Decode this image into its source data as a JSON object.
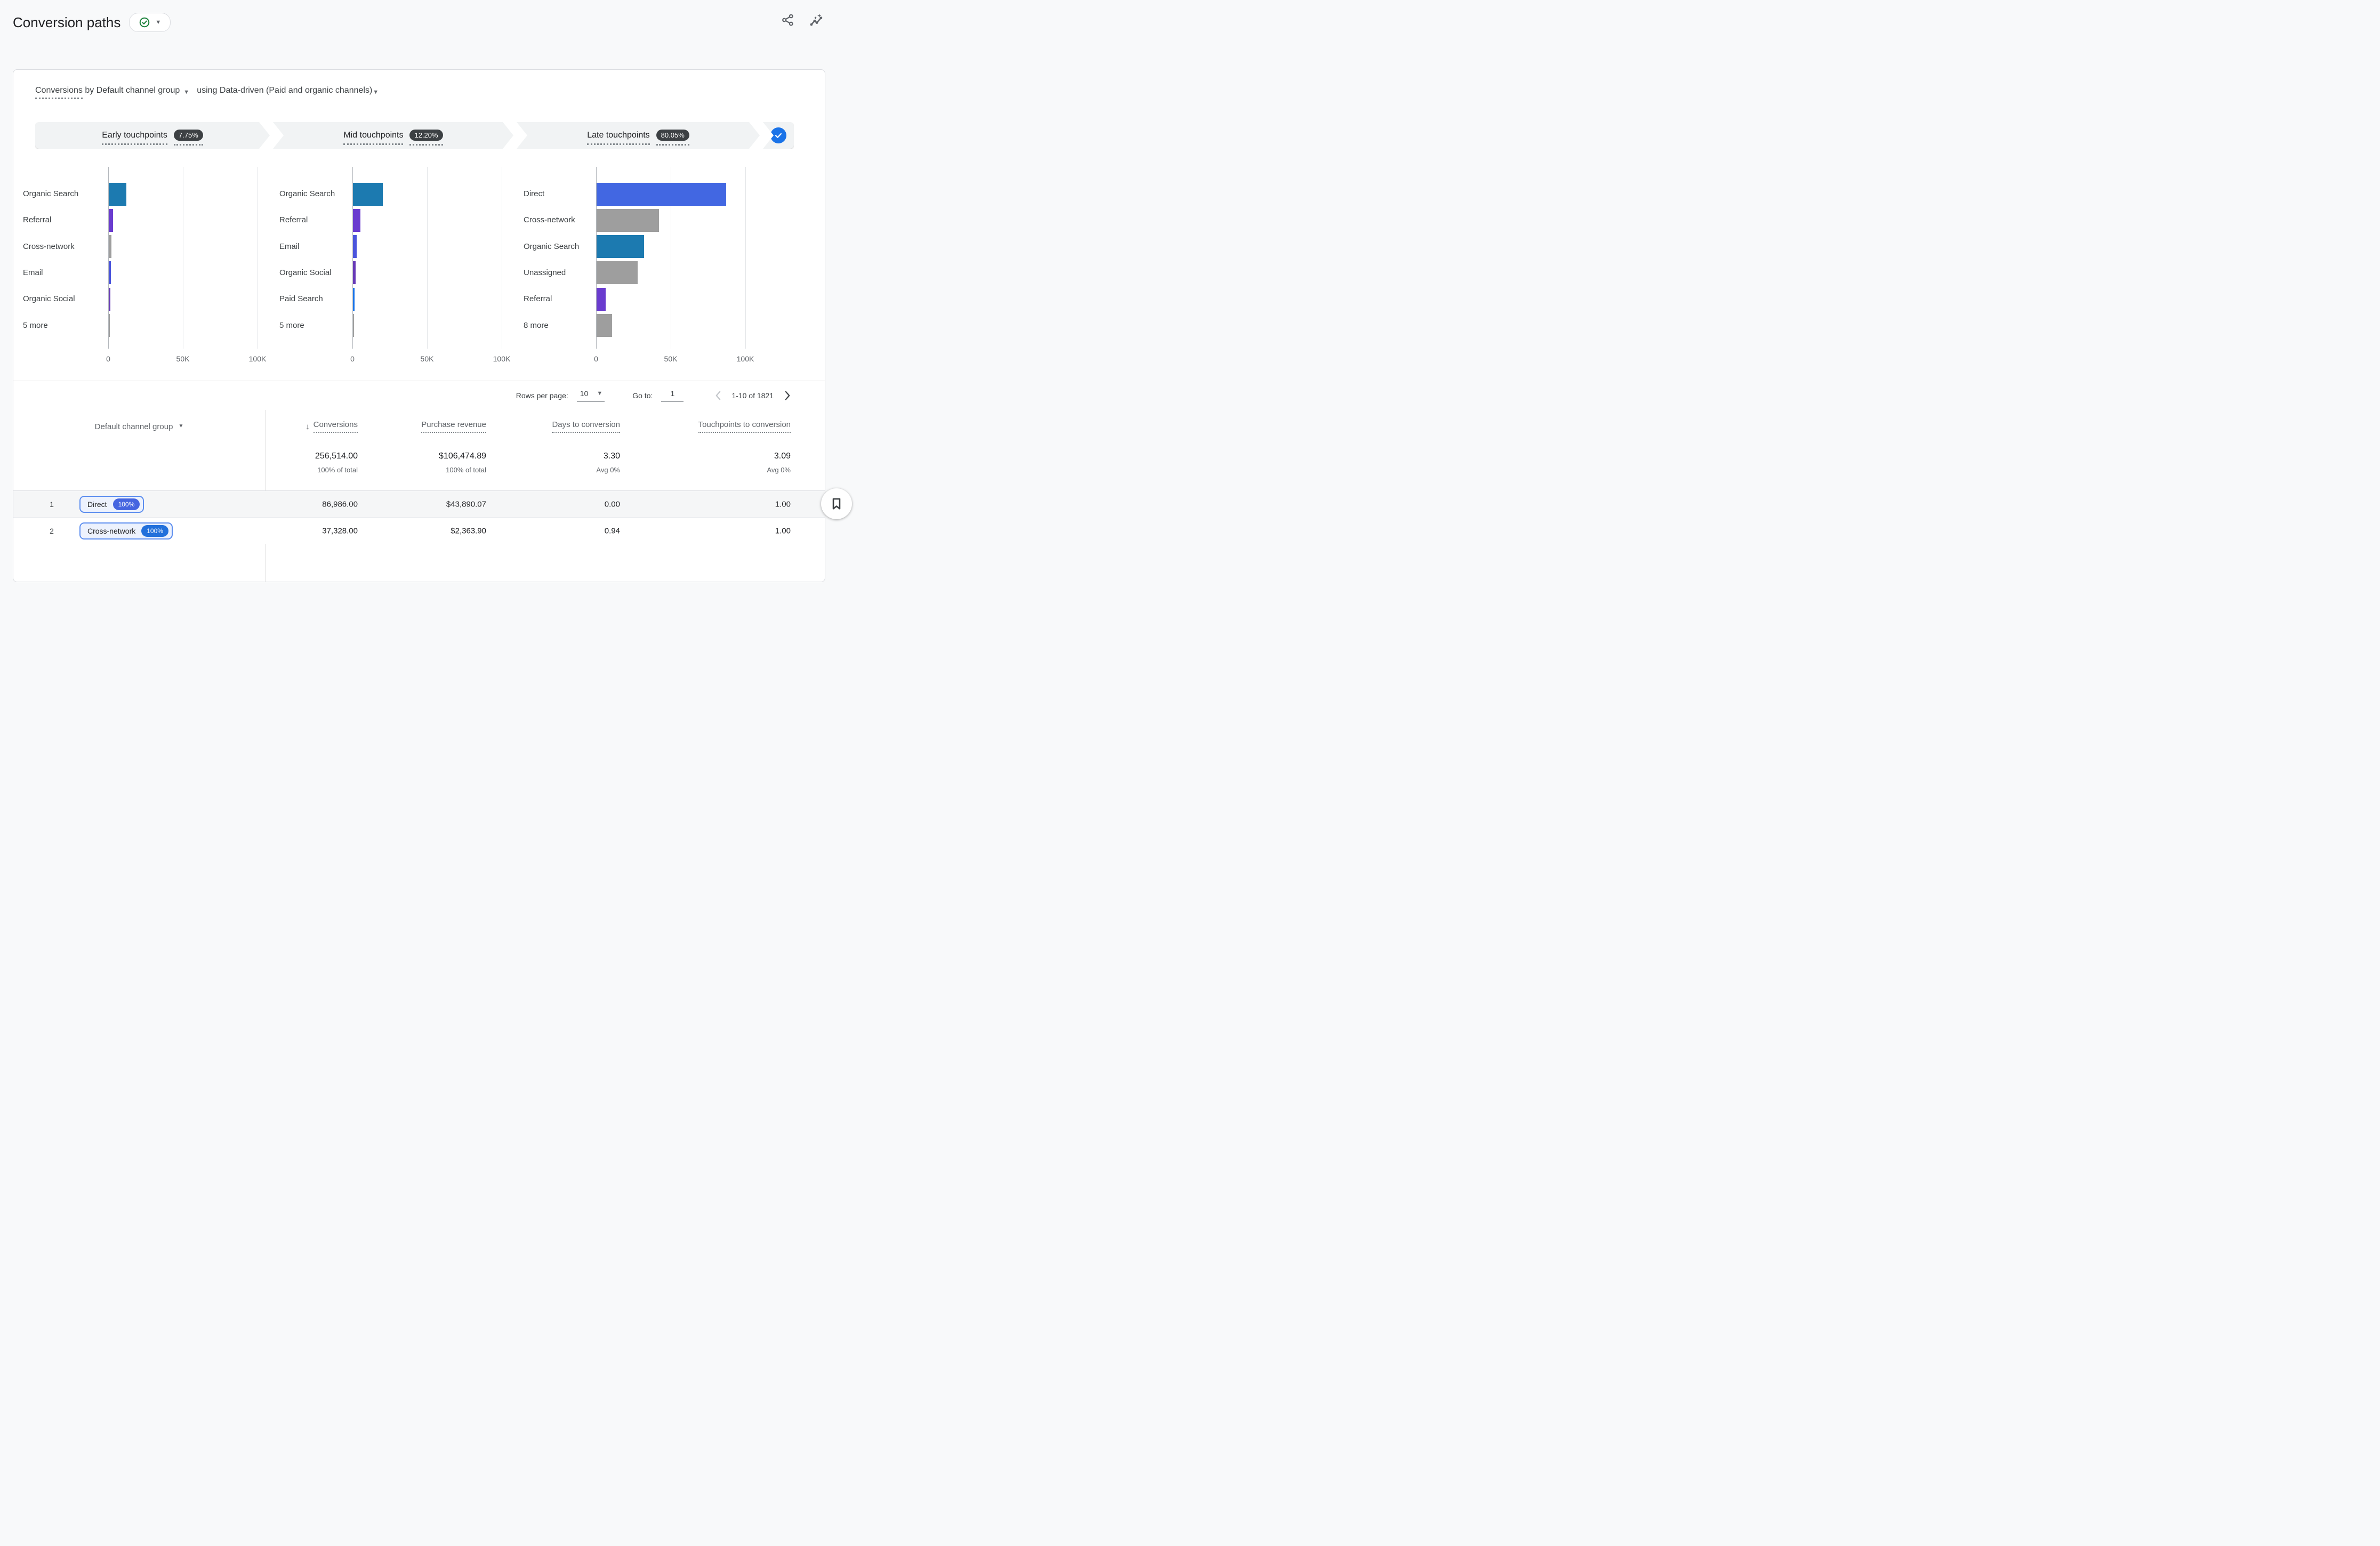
{
  "header": {
    "title": "Conversion paths"
  },
  "dimension_line": {
    "metric": "Conversions",
    "dimension": "by Default channel group",
    "model": "using Data-driven (Paid and organic channels)"
  },
  "funnel": {
    "segments": [
      {
        "label": "Early touchpoints",
        "value": "7.75%"
      },
      {
        "label": "Mid touchpoints",
        "value": "12.20%"
      },
      {
        "label": "Late touchpoints",
        "value": "80.05%"
      }
    ]
  },
  "chart_data": [
    {
      "type": "bar",
      "orientation": "horizontal",
      "title": "Early touchpoints",
      "categories": [
        "Organic Search",
        "Referral",
        "Cross-network",
        "Email",
        "Organic Social",
        "5 more"
      ],
      "values": [
        11700,
        2800,
        1700,
        1300,
        900,
        800
      ],
      "colors": [
        "#1c7ab0",
        "#6a3ccf",
        "#9e9e9e",
        "#4b55dc",
        "#673ab7",
        "#9e9e9e"
      ],
      "x_ticks": [
        "0",
        "50K",
        "100K"
      ],
      "tick_values": [
        0,
        50000,
        100000
      ],
      "xlim": [
        0,
        115000
      ],
      "grid": true
    },
    {
      "type": "bar",
      "orientation": "horizontal",
      "title": "Mid touchpoints",
      "categories": [
        "Organic Search",
        "Referral",
        "Email",
        "Organic Social",
        "Paid Search",
        "5 more"
      ],
      "values": [
        20000,
        5000,
        2400,
        1900,
        1000,
        800
      ],
      "colors": [
        "#1c7ab0",
        "#6a3ccf",
        "#4b55dc",
        "#673ab7",
        "#1a73e8",
        "#9e9e9e"
      ],
      "x_ticks": [
        "0",
        "50K",
        "100K"
      ],
      "tick_values": [
        0,
        50000,
        100000
      ],
      "xlim": [
        0,
        115000
      ],
      "grid": true
    },
    {
      "type": "bar",
      "orientation": "horizontal",
      "title": "Late touchpoints",
      "categories": [
        "Direct",
        "Cross-network",
        "Organic Search",
        "Unassigned",
        "Referral",
        "8 more"
      ],
      "values": [
        86700,
        41800,
        31900,
        27600,
        6100,
        10500
      ],
      "colors": [
        "#4267e2",
        "#9e9e9e",
        "#1c7ab0",
        "#9e9e9e",
        "#6a3ccf",
        "#9e9e9e"
      ],
      "x_ticks": [
        "0",
        "50K",
        "100K"
      ],
      "tick_values": [
        0,
        50000,
        100000
      ],
      "xlim": [
        0,
        115000
      ],
      "grid": true
    }
  ],
  "pagination": {
    "rows_per_page_label": "Rows per page:",
    "rows_per_page_value": "10",
    "go_to_label": "Go to:",
    "go_to_value": "1",
    "range_text": "1-10 of 1821"
  },
  "table": {
    "dimension_header": "Default channel group",
    "metric_headers": [
      "Conversions",
      "Purchase revenue",
      "Days to conversion",
      "Touchpoints to conversion"
    ],
    "sorted_column": "Conversions",
    "sort_direction": "descending",
    "totals": {
      "values": [
        "256,514.00",
        "$106,474.89",
        "3.30",
        "3.09"
      ],
      "subs": [
        "100% of total",
        "100% of total",
        "Avg 0%",
        "Avg 0%"
      ]
    },
    "rows": [
      {
        "index": "1",
        "channel": "Direct",
        "percent": "100%",
        "badge_color": "#4565e0",
        "highlighted": true,
        "values": [
          "86,986.00",
          "$43,890.07",
          "0.00",
          "1.00"
        ]
      },
      {
        "index": "2",
        "channel": "Cross-network",
        "percent": "100%",
        "badge_color": "#2270db",
        "highlighted": false,
        "values": [
          "37,328.00",
          "$2,363.90",
          "0.94",
          "1.00"
        ]
      }
    ]
  },
  "colors": {
    "accent_blue": "#1a73e8",
    "badge_dark": "#3c4043",
    "green_check": "#188038",
    "chip_border": "#5b8def",
    "chip_background": "#edf2fd",
    "row_highlight": "#f5f6f7"
  }
}
